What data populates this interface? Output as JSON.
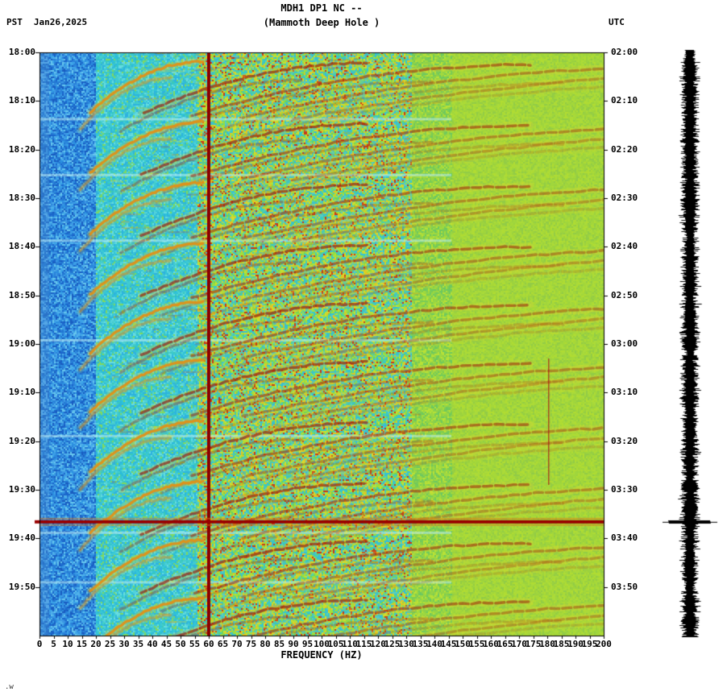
{
  "header": {
    "pst_label": "PST",
    "date": "Jan26,2025",
    "title_line1": "MDH1 DP1 NC --",
    "title_line2": "(Mammoth Deep Hole )",
    "utc_label": "UTC"
  },
  "axes": {
    "xlabel": "FREQUENCY (HZ)",
    "left_time_labels": [
      "18:00",
      "18:10",
      "18:20",
      "18:30",
      "18:40",
      "18:50",
      "19:00",
      "19:10",
      "19:20",
      "19:30",
      "19:40",
      "19:50"
    ],
    "right_time_labels": [
      "02:00",
      "02:10",
      "02:20",
      "02:30",
      "02:40",
      "02:50",
      "03:00",
      "03:10",
      "03:20",
      "03:30",
      "03:40",
      "03:50"
    ],
    "freq_tick_labels": [
      "0",
      "5",
      "10",
      "15",
      "20",
      "25",
      "30",
      "35",
      "40",
      "45",
      "50",
      "55",
      "60",
      "65",
      "70",
      "75",
      "80",
      "85",
      "90",
      "95",
      "100",
      "105",
      "110",
      "115",
      "120",
      "125",
      "130",
      "135",
      "140",
      "145",
      "150",
      "155",
      "160",
      "165",
      "170",
      "175",
      "180",
      "185",
      "190",
      "195",
      "200"
    ]
  },
  "corner_note": ".w",
  "chart_data": {
    "type": "heatmap",
    "title": "MDH1 DP1 NC -- (Mammoth Deep Hole )",
    "xlabel": "FREQUENCY (HZ)",
    "x_range_hz": [
      0,
      200
    ],
    "freq_tick_interval_hz": 5,
    "time_start_pst": "18:00",
    "time_end_pst": "20:00",
    "time_start_utc": "02:00",
    "duration_min": 120,
    "time_tick_interval_min": 10,
    "mains_hum_hz": 60,
    "faint_line_hz": 180.5,
    "faint_line_span_min": [
      63,
      89
    ],
    "broadband_event_min": 96.6,
    "tremor_event_onsets_min": [
      1.5,
      14,
      26.5,
      39,
      51,
      63,
      75.5,
      88,
      100,
      112
    ],
    "quiet_rows_min": [
      13.5,
      25,
      38.5,
      59,
      78.7,
      98.6,
      108.8
    ],
    "harmonics": {
      "count": 5,
      "f_low_hz": 18,
      "f_top_hz": 58,
      "duration_min": 10.5
    },
    "palette": {
      "bands": [
        {
          "max_hz": 3,
          "colors": [
            "#2e7fd2",
            "#3f93dd",
            "#2a72c8",
            "#55a6e6"
          ]
        },
        {
          "max_hz": 20,
          "colors": [
            "#1a66cc",
            "#2b82da",
            "#3c98e4",
            "#2377d2",
            "#4fb0ea",
            "#195cc0",
            "#66c6ee",
            "#2b8fe0",
            "#3ca4e8"
          ]
        },
        {
          "max_hz": 56,
          "colors": [
            "#2fc4d8",
            "#3cc8d4",
            "#2ab8dc",
            "#52d2da",
            "#66dce0",
            "#3cc8b8",
            "#7fd860",
            "#2fb0e0",
            "#45cccc"
          ]
        },
        {
          "max_hz": 132,
          "colors": [
            "#35c8cc",
            "#4ed0a8",
            "#6cd45c",
            "#92dc44",
            "#b4e038",
            "#d4dc2c",
            "#58ccc4",
            "#a0e03c",
            "#e8c020",
            "#35bcd8",
            "#c83818",
            "#3cc4c4"
          ]
        },
        {
          "max_hz": 146,
          "colors": [
            "#8ed04a",
            "#a2da3e",
            "#79cc55",
            "#b8e136",
            "#98d642",
            "#6cc860"
          ]
        },
        {
          "max_hz": 200,
          "colors": [
            "#a6d838",
            "#9cd23e",
            "#b0dc32",
            "#92cc46",
            "#aada3a",
            "#a0d63c"
          ]
        }
      ]
    },
    "colors": {
      "arc_fundamental": "#e09018",
      "arc_harmonic": "#9b1005",
      "arc_halo": "#e6d832",
      "mains_line": "#8b0000",
      "faint_line": "#aa2014",
      "event_line": "#990000",
      "quiet_row": "#bfeef6",
      "trace": "#000000"
    }
  }
}
